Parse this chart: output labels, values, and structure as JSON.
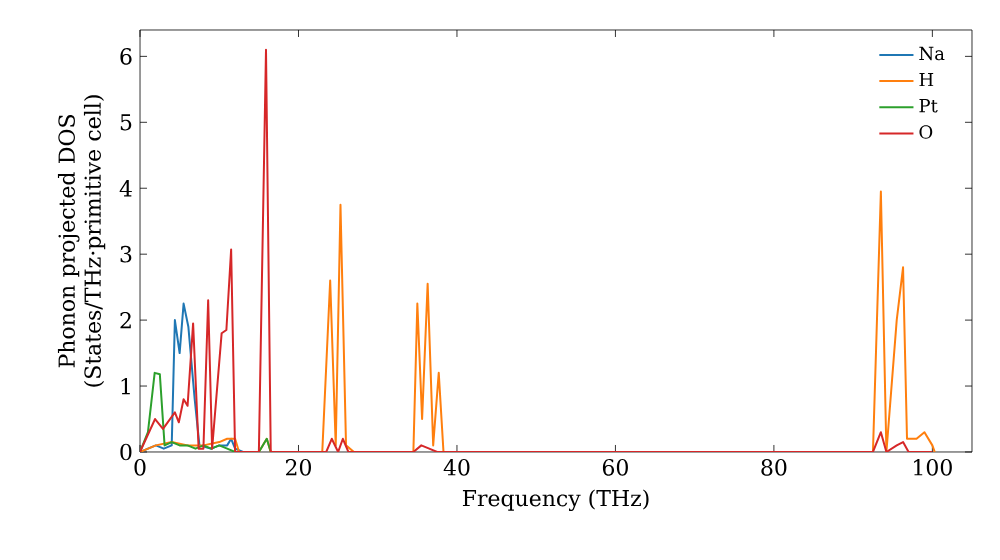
{
  "chart_data": {
    "type": "line",
    "xlabel": "Frequency (THz)",
    "ylabel": "Phonon projected DOS\n(States/THz·primitive cell)",
    "xlim": [
      0,
      105
    ],
    "ylim": [
      0,
      6.4
    ],
    "xticks": [
      0,
      20,
      40,
      60,
      80,
      100
    ],
    "yticks": [
      0,
      1,
      2,
      3,
      4,
      5,
      6
    ],
    "legend": "top right",
    "grid": false,
    "series": [
      {
        "name": "Na",
        "color": "#1f77b4",
        "x": [
          0,
          1,
          2,
          3,
          4,
          4.4,
          5.0,
          5.5,
          6.1,
          6.9,
          7.5,
          9,
          10,
          11,
          11.5,
          12,
          13
        ],
        "values": [
          0,
          0.05,
          0.1,
          0.05,
          0.1,
          2.0,
          1.5,
          2.25,
          1.9,
          0.8,
          0.1,
          0.05,
          0.1,
          0.1,
          0.2,
          0.05,
          0
        ]
      },
      {
        "name": "H",
        "color": "#ff7f0e",
        "x": [
          0,
          2,
          4,
          6,
          8,
          10,
          11,
          12,
          12.5,
          15,
          16,
          16.5,
          23,
          24,
          24.7,
          25.3,
          26,
          27,
          34.5,
          35,
          35.6,
          36.3,
          37,
          37.7,
          38.3,
          50,
          92.5,
          93.5,
          94.2,
          95.5,
          96.3,
          96.8,
          98,
          99,
          100,
          100.3
        ],
        "values": [
          0,
          0.1,
          0.15,
          0.1,
          0.1,
          0.15,
          0.2,
          0.2,
          0,
          0,
          0.2,
          0,
          0,
          2.6,
          0.1,
          3.75,
          0.1,
          0,
          0,
          2.25,
          0.5,
          2.55,
          0.1,
          1.2,
          0,
          0,
          0,
          3.95,
          0,
          2.0,
          2.8,
          0.2,
          0.2,
          0.3,
          0.1,
          0
        ]
      },
      {
        "name": "Pt",
        "color": "#2ca02c",
        "x": [
          0,
          1,
          1.85,
          2.5,
          3.1,
          4,
          5,
          6,
          7,
          8,
          9,
          10,
          11,
          12,
          15,
          16,
          16.5
        ],
        "values": [
          0,
          0.3,
          1.2,
          1.18,
          0.1,
          0.15,
          0.1,
          0.1,
          0.05,
          0.1,
          0.05,
          0.1,
          0.05,
          0,
          0,
          0.2,
          0
        ]
      },
      {
        "name": "O",
        "color": "#d62728",
        "x": [
          0,
          1.9,
          2.9,
          4.4,
          4.9,
          5.5,
          6.0,
          6.7,
          7.4,
          8.0,
          8.6,
          9.1,
          10.3,
          10.9,
          11.5,
          12.0,
          15.0,
          15.9,
          16.5,
          23.5,
          24.2,
          25,
          25.6,
          26.3,
          34.5,
          35.5,
          36.5,
          37.5,
          92.5,
          93.5,
          94.2,
          95.5,
          96.3,
          97,
          100
        ],
        "values": [
          0,
          0.5,
          0.35,
          0.6,
          0.45,
          0.8,
          0.7,
          1.95,
          0.05,
          0.05,
          2.3,
          0.05,
          1.8,
          1.85,
          3.07,
          0,
          0,
          6.1,
          0,
          0,
          0.2,
          0,
          0.2,
          0,
          0,
          0.1,
          0.05,
          0,
          0,
          0.3,
          0,
          0.1,
          0.15,
          0,
          0
        ]
      }
    ]
  }
}
